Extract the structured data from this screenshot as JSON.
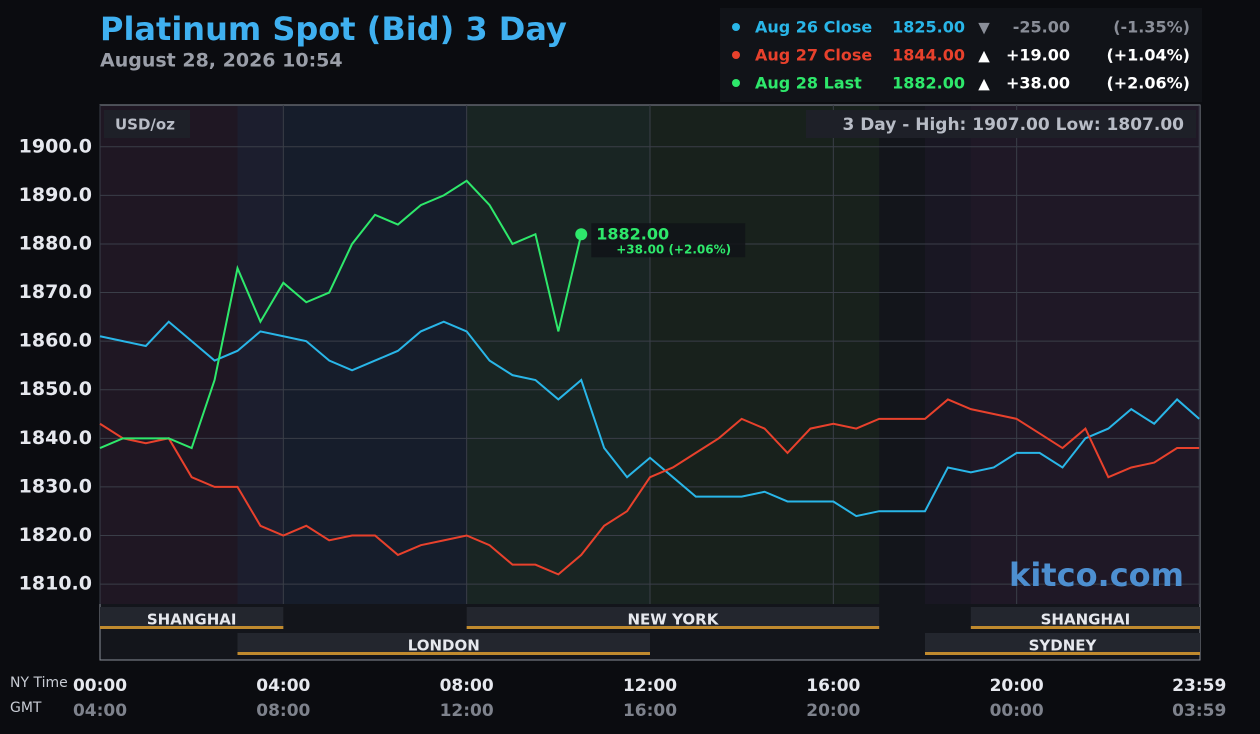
{
  "chart_data": {
    "type": "line",
    "title": "Platinum Spot (Bid) 3 Day",
    "subtitle": "August 28, 2026 10:54",
    "unit_label": "USD/oz",
    "range_note": "3 Day - High: 1907.00  Low: 1807.00",
    "watermark": "kitco.com",
    "x_row_labels": [
      "NY Time",
      "GMT"
    ],
    "x": [
      0,
      0.5,
      1,
      1.5,
      2,
      2.5,
      3,
      3.5,
      4,
      4.5,
      5,
      5.5,
      6,
      6.5,
      7,
      7.5,
      8,
      8.5,
      9,
      9.5,
      10,
      10.5,
      11,
      11.5,
      12,
      12.5,
      13,
      13.5,
      14,
      14.5,
      15,
      15.5,
      16,
      16.5,
      17,
      17.5,
      18,
      18.5,
      19,
      19.5,
      20,
      20.5,
      21,
      21.5,
      22,
      22.5,
      23,
      23.5,
      23.983
    ],
    "xlim": [
      0,
      24
    ],
    "xticks": [
      {
        "value": 0,
        "label": "00:00"
      },
      {
        "value": 4,
        "label": "04:00"
      },
      {
        "value": 8,
        "label": "08:00"
      },
      {
        "value": 12,
        "label": "12:00"
      },
      {
        "value": 16,
        "label": "16:00"
      },
      {
        "value": 20,
        "label": "20:00"
      },
      {
        "value": 23.983,
        "label": "23:59"
      }
    ],
    "gmt_ticks": [
      {
        "value": 0,
        "label": "04:00"
      },
      {
        "value": 4,
        "label": "08:00"
      },
      {
        "value": 8,
        "label": "12:00"
      },
      {
        "value": 12,
        "label": "16:00"
      },
      {
        "value": 16,
        "label": "20:00"
      },
      {
        "value": 20,
        "label": "00:00"
      },
      {
        "value": 23.983,
        "label": "03:59"
      }
    ],
    "ylim": [
      1805.9,
      1908.6
    ],
    "yticks": [
      {
        "value": 1810,
        "label": "1810.0"
      },
      {
        "value": 1820,
        "label": "1820.0"
      },
      {
        "value": 1830,
        "label": "1830.0"
      },
      {
        "value": 1840,
        "label": "1840.0"
      },
      {
        "value": 1850,
        "label": "1850.0"
      },
      {
        "value": 1860,
        "label": "1860.0"
      },
      {
        "value": 1870,
        "label": "1870.0"
      },
      {
        "value": 1880,
        "label": "1880.0"
      },
      {
        "value": 1890,
        "label": "1890.0"
      },
      {
        "value": 1900,
        "label": "1900.0"
      }
    ],
    "grid": true,
    "series": [
      {
        "name": "Aug 26 Close",
        "color": "#29b6e8",
        "summary": {
          "value": "1825.00",
          "arrow": "▼",
          "change": "-25.00",
          "percent": "(-1.35%)"
        },
        "values": [
          1861,
          1860,
          1859,
          1864,
          1860,
          1856,
          1858,
          1862,
          1861,
          1860,
          1856,
          1854,
          1856,
          1858,
          1862,
          1864,
          1862,
          1856,
          1853,
          1852,
          1848,
          1852,
          1838,
          1832,
          1836,
          1832,
          1828,
          1828,
          1828,
          1829,
          1827,
          1827,
          1827,
          1824,
          1825,
          1825,
          1825,
          1834,
          1833,
          1834,
          1837,
          1837,
          1834,
          1840,
          1842,
          1846,
          1843,
          1848,
          1844
        ]
      },
      {
        "name": "Aug 27 Close",
        "color": "#e8412c",
        "summary": {
          "value": "1844.00",
          "arrow": "▲",
          "change": "+19.00",
          "percent": "(+1.04%)"
        },
        "values": [
          1843,
          1840,
          1839,
          1840,
          1832,
          1830,
          1830,
          1822,
          1820,
          1822,
          1819,
          1820,
          1820,
          1816,
          1818,
          1819,
          1820,
          1818,
          1814,
          1814,
          1812,
          1816,
          1822,
          1825,
          1832,
          1834,
          1837,
          1840,
          1844,
          1842,
          1837,
          1842,
          1843,
          1842,
          1844,
          1844,
          1844,
          1848,
          1846,
          1845,
          1844,
          1841,
          1838,
          1842,
          1832,
          1834,
          1835,
          1838,
          1838
        ]
      },
      {
        "name": "Aug 28 Last",
        "color": "#2ee86b",
        "summary": {
          "value": "1882.00",
          "arrow": "▲",
          "change": "+38.00",
          "percent": "(+2.06%)"
        },
        "last_label": "1882.00",
        "last_change": "+38.00 (+2.06%)",
        "values": [
          1838,
          1840,
          1840,
          1840,
          1838,
          1852,
          1875,
          1864,
          1872,
          1868,
          1870,
          1880,
          1886,
          1884,
          1888,
          1890,
          1893,
          1888,
          1880,
          1882,
          1862,
          1882,
          null,
          null,
          null,
          null,
          null,
          null,
          null,
          null,
          null,
          null,
          null,
          null,
          null,
          null,
          null,
          null,
          null,
          null,
          null,
          null,
          null,
          null,
          null,
          null,
          null,
          null,
          null
        ]
      }
    ],
    "sessions": [
      {
        "name": "SHANGHAI",
        "start": 0,
        "end": 4,
        "row": 1
      },
      {
        "name": "LONDON",
        "start": 3,
        "end": 12,
        "row": 2
      },
      {
        "name": "NEW YORK",
        "start": 8,
        "end": 17,
        "row": 1
      },
      {
        "name": "SHANGHAI",
        "start": 19,
        "end": 24,
        "row": 1
      },
      {
        "name": "SYDNEY",
        "start": 18,
        "end": 24,
        "row": 2
      }
    ]
  }
}
